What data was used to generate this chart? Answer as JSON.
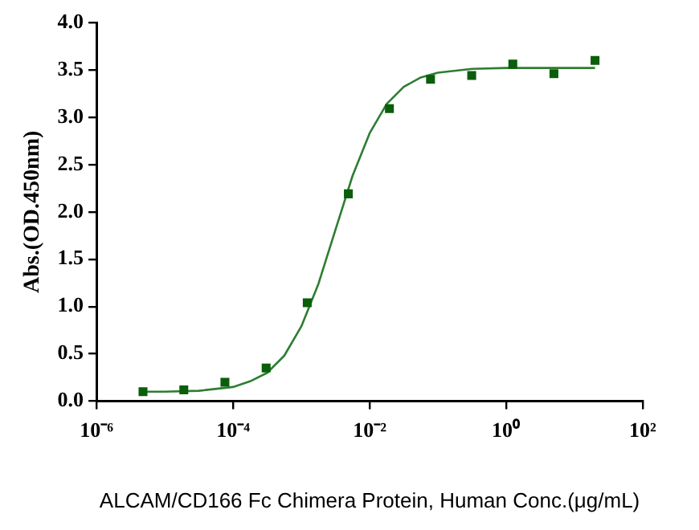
{
  "chart_data": {
    "type": "scatter",
    "xlabel": "ALCAM/CD166 Fc Chimera Protein, Human Conc.(μg/mL)",
    "ylabel": "Abs.(OD.450nm)",
    "log": "x",
    "xlim": [
      1e-06,
      100
    ],
    "xticks": [
      {
        "value": 1e-06,
        "label": "10⁻⁶"
      },
      {
        "value": 0.0001,
        "label": "10⁻⁴"
      },
      {
        "value": 0.01,
        "label": "10⁻²"
      },
      {
        "value": 1,
        "label": "10⁰"
      },
      {
        "value": 100,
        "label": "10²"
      }
    ],
    "ylim": [
      0,
      4
    ],
    "yticks": [
      {
        "value": 0,
        "label": "0.0"
      },
      {
        "value": 0.5,
        "label": "0.5"
      },
      {
        "value": 1,
        "label": "1.0"
      },
      {
        "value": 1.5,
        "label": "1.5"
      },
      {
        "value": 2,
        "label": "2.0"
      },
      {
        "value": 2.5,
        "label": "2.5"
      },
      {
        "value": 3,
        "label": "3.0"
      },
      {
        "value": 3.5,
        "label": "3.5"
      },
      {
        "value": 4,
        "label": "4.0"
      }
    ],
    "grid": false,
    "legend": false,
    "series": [
      {
        "type": "scatter",
        "marker": "square",
        "color": "#0b5e0b",
        "x": [
          4.8e-06,
          1.9e-05,
          7.6e-05,
          0.000305,
          0.00122,
          0.00488,
          0.0195,
          0.078,
          0.3125,
          1.25,
          5,
          20
        ],
        "values": [
          0.1,
          0.12,
          0.2,
          0.35,
          1.04,
          2.19,
          3.09,
          3.4,
          3.44,
          3.56,
          3.46,
          3.6
        ]
      },
      {
        "type": "line",
        "marker": "none",
        "line_style": "solid",
        "color": "#2e7d32",
        "x": [
          5e-06,
          1e-05,
          3.16e-05,
          0.0001,
          0.000178,
          0.000316,
          0.000562,
          0.001,
          0.00178,
          0.00316,
          0.00562,
          0.01,
          0.0178,
          0.0316,
          0.0562,
          0.1,
          0.316,
          1,
          3.16,
          10,
          20
        ],
        "values": [
          0.1,
          0.1,
          0.11,
          0.15,
          0.21,
          0.3,
          0.48,
          0.79,
          1.24,
          1.81,
          2.38,
          2.83,
          3.14,
          3.32,
          3.42,
          3.47,
          3.51,
          3.52,
          3.52,
          3.52,
          3.52
        ]
      }
    ]
  }
}
